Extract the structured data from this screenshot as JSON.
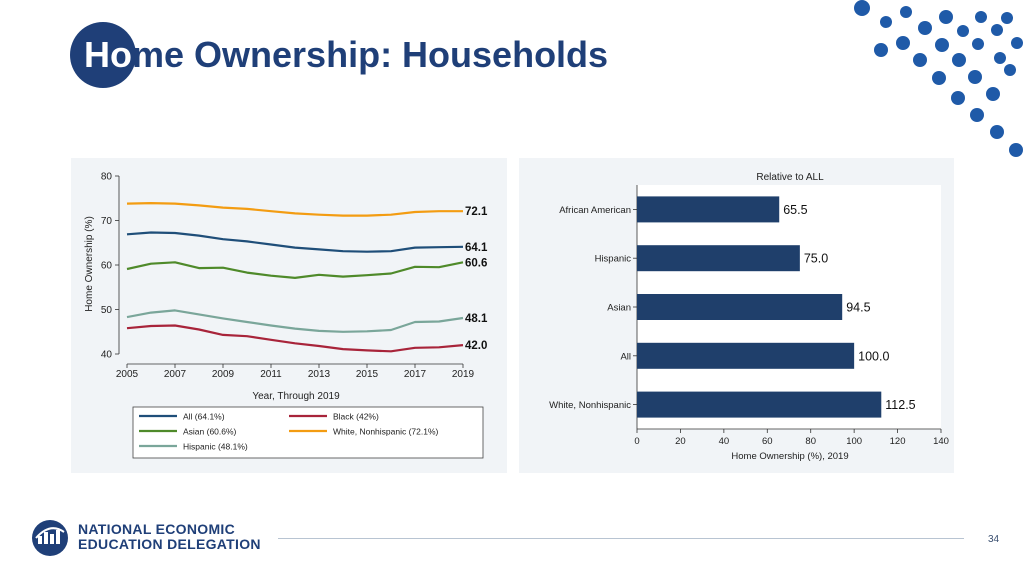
{
  "slide": {
    "title_lead": "Ho",
    "title_rest": "me Ownership: Households",
    "page_number": "34",
    "logo_line1": "NATIONAL ECONOMIC",
    "logo_line2": "EDUCATION DELEGATION"
  },
  "colors": {
    "brand_navy": "#1f3f78",
    "all": "#1f4e79",
    "black": "#a8243a",
    "asian": "#4f8a2a",
    "white_nonhispanic": "#f39c12",
    "hispanic": "#7aa69a",
    "bar": "#1f3f6b"
  },
  "chart_data": [
    {
      "type": "line",
      "title": "",
      "xlabel": "Year, Through 2019",
      "ylabel": "Home Ownership (%)",
      "xlim": [
        2005,
        2019
      ],
      "ylim": [
        40,
        80
      ],
      "x_ticks": [
        "2005",
        "2007",
        "2009",
        "2011",
        "2013",
        "2015",
        "2017",
        "2019"
      ],
      "y_ticks": [
        "40",
        "50",
        "60",
        "70",
        "80"
      ],
      "x": [
        2005,
        2006,
        2007,
        2008,
        2009,
        2010,
        2011,
        2012,
        2013,
        2014,
        2015,
        2016,
        2017,
        2018,
        2019
      ],
      "series": [
        {
          "name": "All (64.1%)",
          "key": "all",
          "end_label": "64.1",
          "values": [
            66.9,
            67.3,
            67.2,
            66.6,
            65.8,
            65.3,
            64.6,
            63.9,
            63.5,
            63.1,
            63.0,
            63.1,
            63.9,
            64.0,
            64.1
          ]
        },
        {
          "name": "Black (42%)",
          "key": "black",
          "end_label": "42.0",
          "values": [
            45.8,
            46.3,
            46.4,
            45.5,
            44.3,
            44.0,
            43.2,
            42.4,
            41.8,
            41.1,
            40.8,
            40.6,
            41.4,
            41.5,
            42.0
          ]
        },
        {
          "name": "Asian (60.6%)",
          "key": "asian",
          "end_label": "60.6",
          "values": [
            59.1,
            60.3,
            60.6,
            59.3,
            59.4,
            58.3,
            57.6,
            57.1,
            57.8,
            57.4,
            57.7,
            58.1,
            59.6,
            59.5,
            60.6
          ]
        },
        {
          "name": "White, Nonhispanic (72.1%)",
          "key": "white_nonhispanic",
          "end_label": "72.1",
          "values": [
            73.8,
            73.9,
            73.8,
            73.4,
            72.9,
            72.6,
            72.1,
            71.6,
            71.3,
            71.1,
            71.1,
            71.3,
            71.9,
            72.1,
            72.1
          ]
        },
        {
          "name": "Hispanic (48.1%)",
          "key": "hispanic",
          "end_label": "48.1",
          "values": [
            48.3,
            49.3,
            49.8,
            48.9,
            48.0,
            47.2,
            46.4,
            45.7,
            45.2,
            45.0,
            45.1,
            45.4,
            47.2,
            47.3,
            48.1
          ]
        }
      ],
      "legend_placement": "bottom",
      "grid": false
    },
    {
      "type": "bar",
      "orientation": "horizontal",
      "title": "Relative to ALL",
      "xlabel": "Home Ownership (%), 2019",
      "ylabel": "",
      "xlim": [
        0,
        140
      ],
      "x_ticks": [
        "0",
        "20",
        "40",
        "60",
        "80",
        "100",
        "120",
        "140"
      ],
      "categories": [
        "African American",
        "Hispanic",
        "Asian",
        "All",
        "White, Nonhispanic"
      ],
      "values": [
        65.5,
        75.0,
        94.5,
        100.0,
        112.5
      ],
      "value_labels": [
        "65.5",
        "75.0",
        "94.5",
        "100.0",
        "112.5"
      ],
      "grid": false
    }
  ]
}
